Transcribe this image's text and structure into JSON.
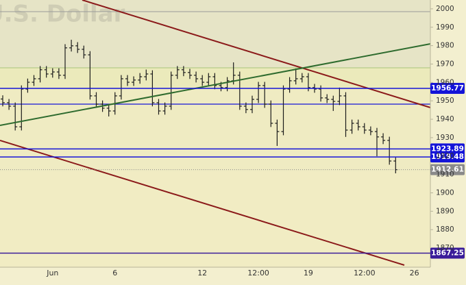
{
  "chart_data": {
    "type": "ohlc",
    "watermark": "U.S. Dollar",
    "categories": [
      null,
      null,
      null,
      null,
      null,
      null,
      null,
      null,
      "Jun",
      null,
      null,
      null,
      null,
      null,
      null,
      null,
      null,
      null,
      "6",
      null,
      null,
      null,
      null,
      null,
      null,
      null,
      null,
      null,
      null,
      null,
      null,
      null,
      "12",
      null,
      null,
      null,
      null,
      null,
      null,
      null,
      null,
      "12:00",
      null,
      null,
      null,
      null,
      null,
      null,
      null,
      "19",
      null,
      null,
      null,
      null,
      null,
      null,
      null,
      null,
      "12:00",
      null,
      null,
      null,
      null,
      null,
      null,
      null,
      "26"
    ],
    "open": [
      1951.0,
      1949.0,
      1947.1,
      1935.9,
      1956.4,
      1960.1,
      1962.0,
      1966.9,
      1964.6,
      1965.7,
      1963.9,
      1978.8,
      1979.9,
      1978.0,
      1975.0,
      1952.7,
      1948.2,
      1946.0,
      1944.5,
      1952.7,
      1962.0,
      1960.1,
      1961.3,
      1963.1,
      1964.6,
      1949.0,
      1944.5,
      1947.1,
      1963.9,
      1966.9,
      1965.4,
      1963.9,
      1962.0,
      1960.1,
      1963.1,
      1958.3,
      1957.2,
      1960.9,
      1963.9,
      1947.1,
      1945.3,
      1950.8,
      1958.3,
      1948.2,
      1937.8,
      1933.3,
      1956.4,
      1960.9,
      1962.0,
      1963.1,
      1957.2,
      1956.4,
      1951.6,
      1950.8,
      1949.7,
      1952.7,
      1934.1,
      1937.8,
      1935.9,
      1934.1,
      1933.3,
      1930.4,
      1928.5,
      1917.3,
      null,
      null,
      null
    ],
    "high": [
      1953.0,
      1951.0,
      1949.1,
      1958.4,
      1962.1,
      1964.0,
      1968.9,
      1968.9,
      1967.7,
      1967.7,
      1980.8,
      1983.2,
      1981.9,
      1980.0,
      1977.0,
      1954.7,
      1950.2,
      1948.0,
      1954.7,
      1964.0,
      1964.0,
      1963.3,
      1965.1,
      1967.0,
      1966.6,
      1951.0,
      1949.1,
      1965.9,
      1968.9,
      1968.9,
      1967.4,
      1965.9,
      1964.0,
      1965.1,
      1965.1,
      1960.3,
      1962.9,
      1970.9,
      1965.9,
      1949.1,
      1952.8,
      1960.3,
      1960.3,
      1950.2,
      1939.8,
      1958.4,
      1962.9,
      1967.6,
      1965.1,
      1965.1,
      1959.2,
      1958.4,
      1953.6,
      1952.8,
      1957.2,
      1954.7,
      1939.8,
      1939.8,
      1937.9,
      1936.1,
      1935.3,
      1932.4,
      1930.5,
      1919.3,
      null,
      null,
      null
    ],
    "low": [
      1947.0,
      1945.1,
      1933.9,
      1933.9,
      1954.4,
      1958.1,
      1960.0,
      1962.6,
      1962.6,
      1961.9,
      1961.9,
      1976.8,
      1976.0,
      1973.0,
      1950.7,
      1946.2,
      1944.0,
      1941.5,
      1942.5,
      1950.7,
      1958.1,
      1958.1,
      1959.3,
      1961.1,
      1947.0,
      1942.5,
      1942.5,
      1945.1,
      1961.9,
      1963.4,
      1961.9,
      1960.0,
      1958.1,
      1958.1,
      1956.3,
      1955.2,
      1955.2,
      1958.9,
      1945.1,
      1943.3,
      1943.3,
      1948.8,
      1946.2,
      1935.8,
      1925.5,
      1931.3,
      1954.4,
      1958.9,
      1960.0,
      1955.2,
      1954.4,
      1949.6,
      1948.8,
      1944.5,
      1947.7,
      1930.4,
      1932.1,
      1933.9,
      1932.1,
      1931.3,
      1919.9,
      1926.5,
      1915.3,
      1910.6,
      null,
      null,
      null
    ],
    "close": [
      1949.0,
      1947.1,
      1935.9,
      1956.4,
      1960.1,
      1962.0,
      1966.9,
      1964.6,
      1965.7,
      1963.9,
      1978.8,
      1979.9,
      1978.0,
      1975.0,
      1952.7,
      1948.2,
      1946.0,
      1944.5,
      1952.7,
      1962.0,
      1960.1,
      1961.3,
      1963.1,
      1964.6,
      1949.0,
      1944.5,
      1947.1,
      1963.9,
      1966.9,
      1965.4,
      1963.9,
      1962.0,
      1960.1,
      1963.1,
      1958.3,
      1957.2,
      1960.9,
      1963.9,
      1947.1,
      1945.3,
      1950.8,
      1958.3,
      1948.2,
      1937.8,
      1933.3,
      1956.4,
      1960.9,
      1962.0,
      1963.1,
      1957.2,
      1956.4,
      1951.6,
      1950.8,
      1949.7,
      1952.7,
      1934.1,
      1937.8,
      1935.9,
      1934.1,
      1933.3,
      1930.4,
      1928.5,
      1917.3,
      1912.61,
      null,
      null,
      null
    ],
    "bar_color": "#1a1a1a",
    "ylim": [
      1859.6,
      2004.8
    ],
    "yticks": [
      1870,
      1880,
      1890,
      1900,
      1910,
      1920,
      1930,
      1940,
      1950,
      1960,
      1970,
      1980,
      1990,
      2000
    ],
    "levels": [
      {
        "value": 1956.77,
        "color": "#1414d8"
      },
      {
        "value": 1923.89,
        "color": "#1414d8"
      },
      {
        "value": 1919.48,
        "color": "#1414d8"
      },
      {
        "value": 1867.25,
        "color": "#3a1c9a"
      }
    ],
    "last_price": {
      "value": 1912.61,
      "color": "#8a8a8a"
    }
  }
}
